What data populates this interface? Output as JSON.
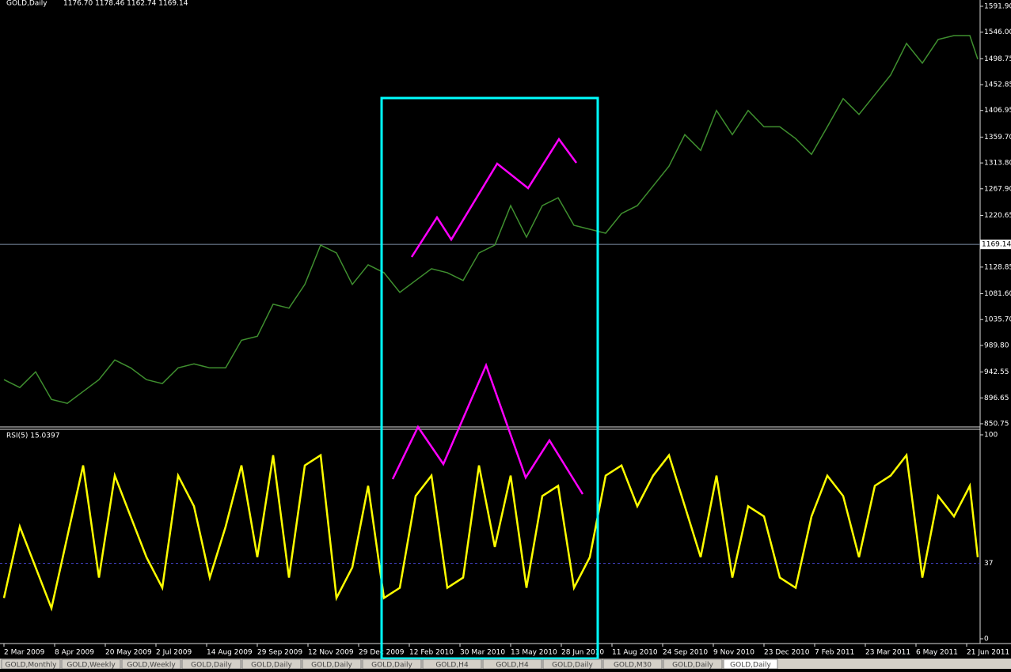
{
  "header": {
    "symbol": "GOLD,Daily",
    "ohlc": "1176.70 1178.46 1162.74 1169.14"
  },
  "chart_data": [
    {
      "type": "line",
      "color": "#3f8f2f",
      "xlim": [
        0,
        616
      ],
      "ylim": [
        845.1,
        1603.1
      ],
      "yticks": [
        {
          "value": 1591.9,
          "label": "1591.90"
        },
        {
          "value": 1546,
          "label": "1546.00"
        },
        1498.75,
        1452.85,
        1406.95,
        {
          "value": 1359.7,
          "label": "1359.70"
        },
        {
          "value": 1313.8,
          "label": "1313.80"
        },
        {
          "value": 1267.9,
          "label": "1267.90"
        },
        1220.65,
        1128.85,
        {
          "value": 1081.6,
          "label": "1081.60"
        },
        {
          "value": 1035.7,
          "label": "1035.70"
        },
        {
          "value": 989.8,
          "label": "989.80"
        },
        942.55,
        896.65,
        850.75
      ],
      "current_price": 1169.14,
      "x": [
        0,
        10,
        20,
        30,
        40,
        50,
        60,
        70,
        80,
        90,
        100,
        110,
        120,
        130,
        140,
        150,
        160,
        170,
        180,
        190,
        200,
        210,
        220,
        230,
        240,
        250,
        260,
        270,
        280,
        290,
        300,
        310,
        320,
        330,
        340,
        350,
        360,
        370,
        380,
        390,
        400,
        410,
        420,
        430,
        440,
        450,
        460,
        470,
        480,
        490,
        500,
        510,
        520,
        530,
        540,
        550,
        560,
        570,
        580,
        590,
        600,
        610,
        615
      ],
      "values": [
        929,
        915,
        943,
        894,
        887,
        908,
        929,
        964,
        950,
        929,
        922,
        950,
        957,
        950,
        950,
        999,
        1006,
        1063,
        1056,
        1098,
        1168,
        1154,
        1098,
        1133,
        1119,
        1084,
        1105,
        1126,
        1119,
        1105,
        1154,
        1168,
        1238,
        1182,
        1238,
        1252,
        1203,
        1196,
        1189,
        1224,
        1238,
        1273,
        1308,
        1364,
        1336,
        1407,
        1364,
        1407,
        1378,
        1378,
        1357,
        1329,
        1378,
        1428,
        1400,
        1435,
        1470,
        1526,
        1491,
        1533,
        1540,
        1540,
        1498
      ]
    },
    {
      "type": "line",
      "title": "RSI(5) 15.0397",
      "color": "#ffff00",
      "xlim": [
        0,
        616
      ],
      "ylim": [
        0,
        100
      ],
      "yticks": [
        0,
        100
      ],
      "level": 37,
      "xticks": [
        {
          "value": 0,
          "label": "2 Mar 2009"
        },
        {
          "value": 32,
          "label": "8 Apr 2009"
        },
        {
          "value": 64,
          "label": "20 May 2009"
        },
        {
          "value": 96,
          "label": "2 Jul 2009"
        },
        {
          "value": 128,
          "label": "14 Aug 2009"
        },
        {
          "value": 160,
          "label": "29 Sep 2009"
        },
        {
          "value": 192,
          "label": "12 Nov 2009"
        },
        {
          "value": 224,
          "label": "29 Dec 2009"
        },
        {
          "value": 256,
          "label": "12 Feb 2010"
        },
        {
          "value": 288,
          "label": "30 Mar 2010"
        },
        {
          "value": 320,
          "label": "13 May 2010"
        },
        {
          "value": 352,
          "label": "28 Jun 2010"
        },
        {
          "value": 384,
          "label": "11 Aug 2010"
        },
        {
          "value": 416,
          "label": "24 Sep 2010"
        },
        {
          "value": 448,
          "label": "9 Nov 2010"
        },
        {
          "value": 480,
          "label": "23 Dec 2010"
        },
        {
          "value": 512,
          "label": "7 Feb 2011"
        },
        {
          "value": 544,
          "label": "23 Mar 2011"
        },
        {
          "value": 576,
          "label": "6 May 2011"
        },
        {
          "value": 608,
          "label": "21 Jun 2011"
        }
      ],
      "x": [
        0,
        10,
        20,
        30,
        40,
        50,
        60,
        70,
        80,
        90,
        100,
        110,
        120,
        130,
        140,
        150,
        160,
        170,
        180,
        190,
        200,
        210,
        220,
        230,
        240,
        250,
        260,
        270,
        280,
        290,
        300,
        310,
        320,
        330,
        340,
        350,
        360,
        370,
        380,
        390,
        400,
        410,
        420,
        430,
        440,
        450,
        460,
        470,
        480,
        490,
        500,
        510,
        520,
        530,
        540,
        550,
        560,
        570,
        580,
        590,
        600,
        610,
        615
      ],
      "values": [
        20,
        55,
        35,
        15,
        50,
        85,
        30,
        80,
        60,
        40,
        25,
        80,
        65,
        30,
        55,
        85,
        40,
        90,
        30,
        85,
        90,
        20,
        35,
        75,
        20,
        25,
        70,
        80,
        25,
        30,
        85,
        45,
        80,
        25,
        70,
        75,
        25,
        40,
        80,
        85,
        65,
        80,
        90,
        65,
        40,
        80,
        30,
        65,
        60,
        30,
        25,
        60,
        80,
        70,
        40,
        75,
        80,
        90,
        30,
        70,
        60,
        75,
        40
      ]
    }
  ],
  "tabs": [
    "GOLD,Monthly",
    "GOLD,Weekly",
    "GOLD,Weekly",
    "GOLD,Daily",
    "GOLD,Daily",
    "GOLD,Daily",
    "GOLD,Daily",
    "GOLD,H4",
    "GOLD,H4",
    "GOLD,Daily",
    "GOLD,M30",
    "GOLD,Daily",
    "GOLD,Daily"
  ]
}
